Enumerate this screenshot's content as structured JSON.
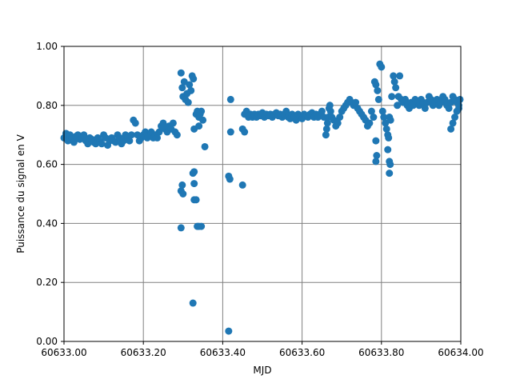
{
  "chart_data": {
    "type": "scatter",
    "title": "",
    "xlabel": "MJD",
    "ylabel": "Puissance du signal en V",
    "xlim": [
      60633.0,
      60634.0
    ],
    "ylim": [
      0.0,
      1.0
    ],
    "x_ticks": [
      60633.0,
      60633.2,
      60633.4,
      60633.6,
      60633.8,
      60634.0
    ],
    "x_tick_labels": [
      "60633.00",
      "60633.20",
      "60633.40",
      "60633.60",
      "60633.80",
      "60634.00"
    ],
    "y_ticks": [
      0.0,
      0.2,
      0.4,
      0.6,
      0.8,
      1.0
    ],
    "y_tick_labels": [
      "0.00",
      "0.20",
      "0.40",
      "0.60",
      "0.80",
      "1.00"
    ],
    "grid": true,
    "series": [
      {
        "color": "#1f77b4",
        "points": [
          [
            60633.0,
            0.69
          ],
          [
            60633.005,
            0.705
          ],
          [
            60633.01,
            0.68
          ],
          [
            60633.015,
            0.7
          ],
          [
            60633.02,
            0.69
          ],
          [
            60633.025,
            0.675
          ],
          [
            60633.03,
            0.695
          ],
          [
            60633.035,
            0.7
          ],
          [
            60633.04,
            0.685
          ],
          [
            60633.045,
            0.69
          ],
          [
            60633.05,
            0.7
          ],
          [
            60633.055,
            0.68
          ],
          [
            60633.06,
            0.67
          ],
          [
            60633.065,
            0.69
          ],
          [
            60633.07,
            0.685
          ],
          [
            60633.075,
            0.675
          ],
          [
            60633.08,
            0.67
          ],
          [
            60633.085,
            0.69
          ],
          [
            60633.09,
            0.68
          ],
          [
            60633.095,
            0.67
          ],
          [
            60633.1,
            0.7
          ],
          [
            60633.105,
            0.69
          ],
          [
            60633.11,
            0.665
          ],
          [
            60633.115,
            0.68
          ],
          [
            60633.12,
            0.69
          ],
          [
            60633.125,
            0.68
          ],
          [
            60633.13,
            0.675
          ],
          [
            60633.135,
            0.7
          ],
          [
            60633.14,
            0.69
          ],
          [
            60633.145,
            0.67
          ],
          [
            60633.15,
            0.68
          ],
          [
            60633.155,
            0.7
          ],
          [
            60633.16,
            0.69
          ],
          [
            60633.165,
            0.68
          ],
          [
            60633.17,
            0.7
          ],
          [
            60633.175,
            0.75
          ],
          [
            60633.18,
            0.74
          ],
          [
            60633.185,
            0.7
          ],
          [
            60633.19,
            0.68
          ],
          [
            60633.195,
            0.69
          ],
          [
            60633.2,
            0.7
          ],
          [
            60633.205,
            0.71
          ],
          [
            60633.21,
            0.69
          ],
          [
            60633.215,
            0.7
          ],
          [
            60633.22,
            0.71
          ],
          [
            60633.225,
            0.69
          ],
          [
            60633.23,
            0.7
          ],
          [
            60633.235,
            0.69
          ],
          [
            60633.24,
            0.71
          ],
          [
            60633.245,
            0.73
          ],
          [
            60633.25,
            0.74
          ],
          [
            60633.255,
            0.72
          ],
          [
            60633.26,
            0.71
          ],
          [
            60633.265,
            0.73
          ],
          [
            60633.27,
            0.72
          ],
          [
            60633.275,
            0.74
          ],
          [
            60633.28,
            0.71
          ],
          [
            60633.285,
            0.7
          ],
          [
            60633.295,
            0.91
          ],
          [
            60633.298,
            0.86
          ],
          [
            60633.3,
            0.83
          ],
          [
            60633.303,
            0.88
          ],
          [
            60633.306,
            0.82
          ],
          [
            60633.31,
            0.84
          ],
          [
            60633.313,
            0.81
          ],
          [
            60633.316,
            0.87
          ],
          [
            60633.32,
            0.85
          ],
          [
            60633.323,
            0.9
          ],
          [
            60633.326,
            0.89
          ],
          [
            60633.295,
            0.51
          ],
          [
            60633.298,
            0.53
          ],
          [
            60633.3,
            0.5
          ],
          [
            60633.295,
            0.385
          ],
          [
            60633.325,
            0.57
          ],
          [
            60633.328,
            0.575
          ],
          [
            60633.328,
            0.48
          ],
          [
            60633.333,
            0.48
          ],
          [
            60633.328,
            0.535
          ],
          [
            60633.328,
            0.72
          ],
          [
            60633.325,
            0.13
          ],
          [
            60633.333,
            0.77
          ],
          [
            60633.336,
            0.78
          ],
          [
            60633.34,
            0.76
          ],
          [
            60633.343,
            0.77
          ],
          [
            60633.346,
            0.78
          ],
          [
            60633.35,
            0.75
          ],
          [
            60633.34,
            0.73
          ],
          [
            60633.336,
            0.39
          ],
          [
            60633.34,
            0.39
          ],
          [
            60633.346,
            0.39
          ],
          [
            60633.355,
            0.66
          ],
          [
            60633.415,
            0.035
          ],
          [
            60633.42,
            0.82
          ],
          [
            60633.42,
            0.71
          ],
          [
            60633.415,
            0.56
          ],
          [
            60633.418,
            0.55
          ],
          [
            60633.45,
            0.53
          ],
          [
            60633.45,
            0.72
          ],
          [
            60633.455,
            0.71
          ],
          [
            60633.455,
            0.77
          ],
          [
            60633.46,
            0.78
          ],
          [
            60633.465,
            0.76
          ],
          [
            60633.47,
            0.77
          ],
          [
            60633.475,
            0.76
          ],
          [
            60633.48,
            0.77
          ],
          [
            60633.485,
            0.76
          ],
          [
            60633.49,
            0.77
          ],
          [
            60633.495,
            0.765
          ],
          [
            60633.5,
            0.775
          ],
          [
            60633.505,
            0.76
          ],
          [
            60633.51,
            0.77
          ],
          [
            60633.515,
            0.765
          ],
          [
            60633.52,
            0.77
          ],
          [
            60633.525,
            0.76
          ],
          [
            60633.53,
            0.77
          ],
          [
            60633.535,
            0.775
          ],
          [
            60633.54,
            0.765
          ],
          [
            60633.545,
            0.77
          ],
          [
            60633.55,
            0.76
          ],
          [
            60633.555,
            0.77
          ],
          [
            60633.56,
            0.78
          ],
          [
            60633.565,
            0.76
          ],
          [
            60633.57,
            0.755
          ],
          [
            60633.575,
            0.77
          ],
          [
            60633.58,
            0.76
          ],
          [
            60633.585,
            0.75
          ],
          [
            60633.59,
            0.77
          ],
          [
            60633.595,
            0.76
          ],
          [
            60633.6,
            0.755
          ],
          [
            60633.605,
            0.77
          ],
          [
            60633.61,
            0.765
          ],
          [
            60633.615,
            0.76
          ],
          [
            60633.62,
            0.77
          ],
          [
            60633.625,
            0.775
          ],
          [
            60633.63,
            0.76
          ],
          [
            60633.635,
            0.77
          ],
          [
            60633.64,
            0.76
          ],
          [
            60633.645,
            0.77
          ],
          [
            60633.65,
            0.78
          ],
          [
            60633.655,
            0.76
          ],
          [
            60633.66,
            0.7
          ],
          [
            60633.662,
            0.72
          ],
          [
            60633.664,
            0.74
          ],
          [
            60633.666,
            0.76
          ],
          [
            60633.668,
            0.79
          ],
          [
            60633.67,
            0.8
          ],
          [
            60633.672,
            0.78
          ],
          [
            60633.675,
            0.76
          ],
          [
            60633.68,
            0.75
          ],
          [
            60633.685,
            0.73
          ],
          [
            60633.69,
            0.74
          ],
          [
            60633.695,
            0.76
          ],
          [
            60633.7,
            0.78
          ],
          [
            60633.705,
            0.79
          ],
          [
            60633.71,
            0.8
          ],
          [
            60633.715,
            0.81
          ],
          [
            60633.72,
            0.82
          ],
          [
            60633.725,
            0.81
          ],
          [
            60633.73,
            0.8
          ],
          [
            60633.735,
            0.81
          ],
          [
            60633.74,
            0.79
          ],
          [
            60633.745,
            0.78
          ],
          [
            60633.75,
            0.77
          ],
          [
            60633.755,
            0.76
          ],
          [
            60633.76,
            0.75
          ],
          [
            60633.765,
            0.73
          ],
          [
            60633.77,
            0.74
          ],
          [
            60633.775,
            0.78
          ],
          [
            60633.78,
            0.76
          ],
          [
            60633.783,
            0.88
          ],
          [
            60633.786,
            0.87
          ],
          [
            60633.79,
            0.85
          ],
          [
            60633.793,
            0.82
          ],
          [
            60633.796,
            0.94
          ],
          [
            60633.8,
            0.93
          ],
          [
            60633.803,
            0.78
          ],
          [
            60633.806,
            0.76
          ],
          [
            60633.81,
            0.74
          ],
          [
            60633.813,
            0.72
          ],
          [
            60633.816,
            0.7
          ],
          [
            60633.82,
            0.76
          ],
          [
            60633.823,
            0.75
          ],
          [
            60633.786,
            0.68
          ],
          [
            60633.788,
            0.63
          ],
          [
            60633.786,
            0.61
          ],
          [
            60633.816,
            0.65
          ],
          [
            60633.82,
            0.61
          ],
          [
            60633.822,
            0.6
          ],
          [
            60633.82,
            0.57
          ],
          [
            60633.818,
            0.69
          ],
          [
            60633.826,
            0.83
          ],
          [
            60633.83,
            0.9
          ],
          [
            60633.833,
            0.88
          ],
          [
            60633.836,
            0.86
          ],
          [
            60633.84,
            0.8
          ],
          [
            60633.843,
            0.83
          ],
          [
            60633.846,
            0.9
          ],
          [
            60633.85,
            0.82
          ],
          [
            60633.855,
            0.81
          ],
          [
            60633.86,
            0.82
          ],
          [
            60633.865,
            0.8
          ],
          [
            60633.87,
            0.79
          ],
          [
            60633.875,
            0.81
          ],
          [
            60633.88,
            0.8
          ],
          [
            60633.885,
            0.82
          ],
          [
            60633.89,
            0.81
          ],
          [
            60633.895,
            0.8
          ],
          [
            60633.9,
            0.82
          ],
          [
            60633.905,
            0.81
          ],
          [
            60633.91,
            0.79
          ],
          [
            60633.915,
            0.81
          ],
          [
            60633.92,
            0.83
          ],
          [
            60633.925,
            0.82
          ],
          [
            60633.93,
            0.8
          ],
          [
            60633.935,
            0.81
          ],
          [
            60633.94,
            0.82
          ],
          [
            60633.945,
            0.8
          ],
          [
            60633.95,
            0.81
          ],
          [
            60633.955,
            0.83
          ],
          [
            60633.96,
            0.82
          ],
          [
            60633.965,
            0.8
          ],
          [
            60633.97,
            0.79
          ],
          [
            60633.975,
            0.81
          ],
          [
            60633.98,
            0.83
          ],
          [
            60633.985,
            0.82
          ],
          [
            60633.99,
            0.81
          ],
          [
            60633.995,
            0.79
          ],
          [
            60633.998,
            0.82
          ],
          [
            60633.975,
            0.72
          ],
          [
            60633.98,
            0.74
          ],
          [
            60633.985,
            0.76
          ],
          [
            60633.99,
            0.78
          ],
          [
            60633.995,
            0.8
          ]
        ]
      }
    ]
  }
}
